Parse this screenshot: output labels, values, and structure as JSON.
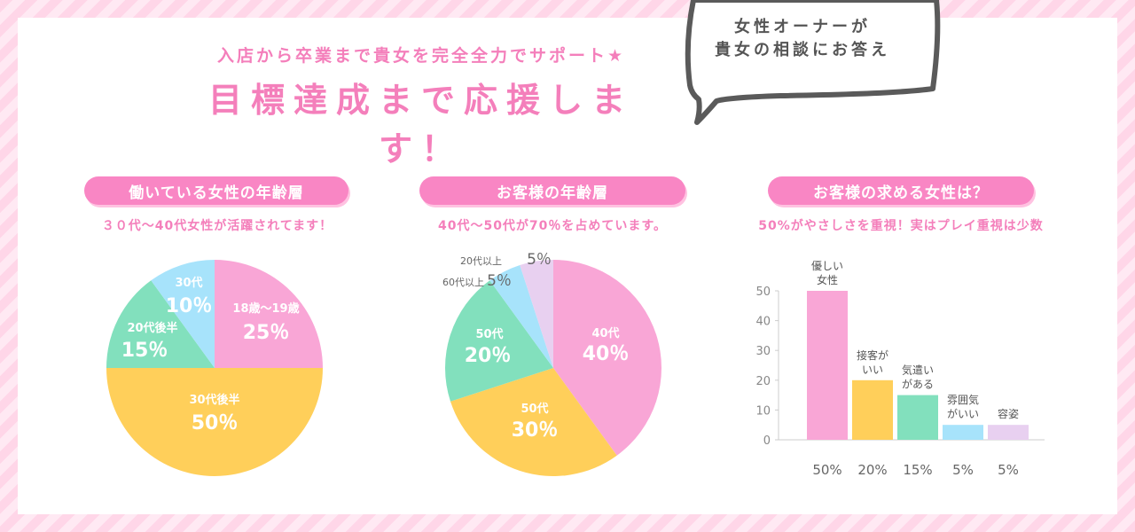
{
  "header": {
    "subtitle": "入店から卒業まで貴女を完全全力でサポート★",
    "title": "目標達成まで応援します！",
    "bubble_line1": "女性オーナーが",
    "bubble_line2": "貴女の相談にお答え"
  },
  "colors": {
    "pink": "#f9a6d6",
    "yellow": "#ffcf5a",
    "green": "#82e0bd",
    "blue": "#a7e3fb",
    "lavender": "#e8d0f0",
    "accent": "#f47fbb"
  },
  "panels": [
    {
      "heading": "働いている女性の年齢層",
      "caption": "３０代〜40代女性が活躍されてます！"
    },
    {
      "heading": "お客様の年齢層",
      "caption": "40代〜50代が70％を占めています。"
    },
    {
      "heading": "お客様の求める女性は？",
      "caption": "50%がやさしさを重視！実はプレイ重視は少数"
    }
  ],
  "chart_data": [
    {
      "type": "pie",
      "title": "働いている女性の年齢層",
      "slices": [
        {
          "label": "18歳〜19歳",
          "value": 25,
          "display": "25％",
          "color": "#f9a6d6"
        },
        {
          "label": "30代後半",
          "value": 50,
          "display": "50％",
          "color": "#ffcf5a"
        },
        {
          "label": "20代後半",
          "value": 15,
          "display": "15％",
          "color": "#82e0bd"
        },
        {
          "label": "30代",
          "value": 10,
          "display": "10％",
          "color": "#a7e3fb"
        }
      ]
    },
    {
      "type": "pie",
      "title": "お客様の年齢層",
      "slices": [
        {
          "label": "40代",
          "value": 40,
          "display": "40％",
          "color": "#f9a6d6"
        },
        {
          "label": "50代",
          "value": 30,
          "display": "30％",
          "color": "#ffcf5a"
        },
        {
          "label": "50代",
          "value": 20,
          "display": "20％",
          "color": "#82e0bd"
        },
        {
          "label": "60代以上",
          "value": 5,
          "display": "5％",
          "color": "#a7e3fb"
        },
        {
          "label": "20代以上",
          "value": 5,
          "display": "5％",
          "color": "#e8d0f0"
        }
      ]
    },
    {
      "type": "bar",
      "title": "お客様の求める女性は？",
      "categories": [
        "優しい\n女性",
        "接客が\nいい",
        "気遣い\nがある",
        "雰囲気\nがいい",
        "容姿"
      ],
      "values": [
        50,
        20,
        15,
        5,
        5
      ],
      "value_labels": [
        "50%",
        "20%",
        "15%",
        "5%",
        "5%"
      ],
      "colors": [
        "#f9a6d6",
        "#ffcf5a",
        "#82e0bd",
        "#a7e3fb",
        "#e8d0f0"
      ],
      "yticks": [
        "0",
        "10",
        "20",
        "30",
        "40",
        "50"
      ],
      "ylim": [
        0,
        50
      ],
      "grid": false
    }
  ]
}
